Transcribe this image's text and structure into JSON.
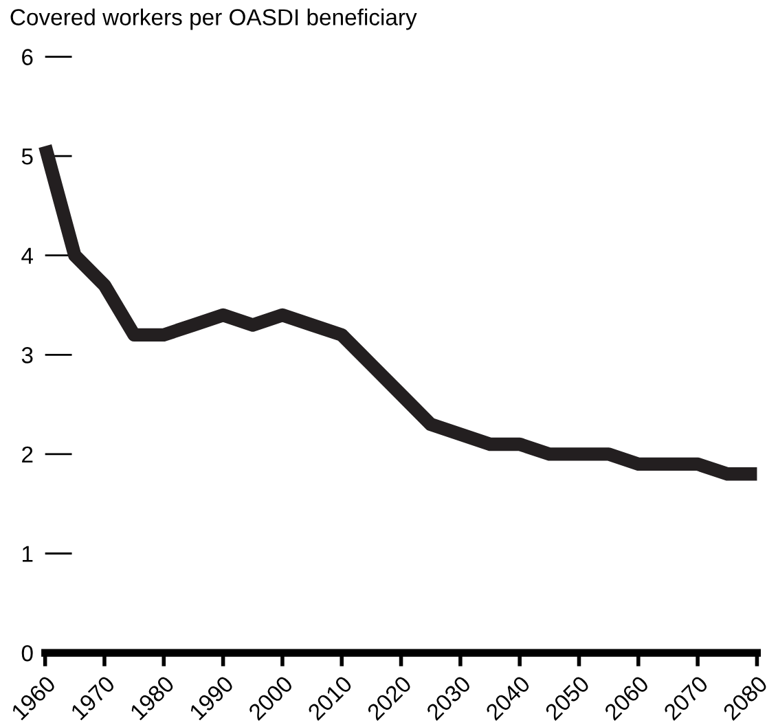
{
  "chart_data": {
    "type": "line",
    "ylabel": "Covered workers per OASDI beneficiary",
    "x": [
      1960,
      1965,
      1970,
      1975,
      1980,
      1985,
      1990,
      1995,
      2000,
      2005,
      2010,
      2015,
      2020,
      2025,
      2030,
      2035,
      2040,
      2045,
      2050,
      2055,
      2060,
      2065,
      2070,
      2075,
      2080
    ],
    "series": [
      {
        "color": "#231f20",
        "values": [
          5.1,
          4.0,
          3.7,
          3.2,
          3.2,
          3.3,
          3.4,
          3.3,
          3.4,
          3.3,
          3.2,
          2.9,
          2.6,
          2.3,
          2.2,
          2.1,
          2.1,
          2.0,
          2.0,
          2.0,
          1.9,
          1.9,
          1.9,
          1.8,
          1.8
        ]
      }
    ],
    "xlim": [
      1960,
      2080
    ],
    "xticks": [
      1960,
      1970,
      1980,
      1990,
      2000,
      2010,
      2020,
      2030,
      2040,
      2050,
      2060,
      2070,
      2080
    ],
    "ylim": [
      0,
      6
    ],
    "yticks": [
      0,
      1,
      2,
      3,
      4,
      5,
      6
    ],
    "grid": false,
    "marker": "none",
    "line_style": "solid"
  }
}
